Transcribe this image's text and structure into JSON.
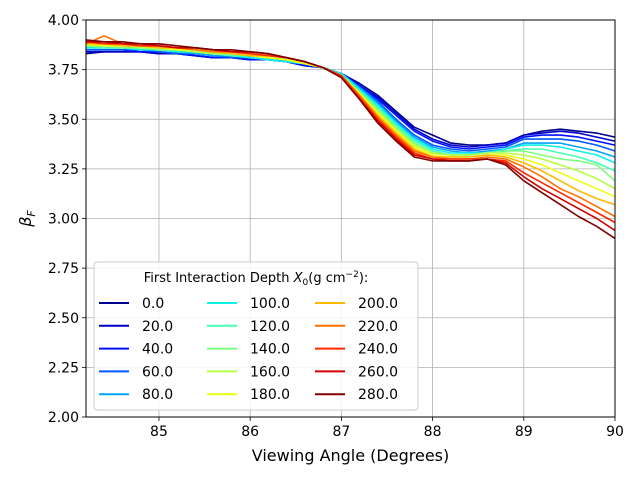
{
  "chart_data": {
    "type": "line",
    "title": "",
    "xlabel": "Viewing Angle (Degrees)",
    "ylabel": "β",
    "ylabel_sub": "F",
    "xlim": [
      84.2,
      90
    ],
    "ylim": [
      2.0,
      4.0
    ],
    "xticks": [
      85,
      86,
      87,
      88,
      89,
      90
    ],
    "yticks": [
      2.0,
      2.25,
      2.5,
      2.75,
      3.0,
      3.25,
      3.5,
      3.75,
      4.0
    ],
    "ytick_labels": [
      "2.00",
      "2.25",
      "2.50",
      "2.75",
      "3.00",
      "3.25",
      "3.50",
      "3.75",
      "4.00"
    ],
    "xtick_labels": [
      "85",
      "86",
      "87",
      "88",
      "89",
      "90"
    ],
    "grid": true,
    "legend": {
      "title_prefix": "First Interaction Depth ",
      "title_var": "X",
      "title_sub": "0",
      "title_open": "(g cm",
      "title_sup": "−2",
      "title_close": "):",
      "placement": "lower-left",
      "columns": 3
    },
    "x": [
      84.2,
      84.4,
      84.6,
      84.8,
      85.0,
      85.2,
      85.4,
      85.6,
      85.8,
      86.0,
      86.2,
      86.4,
      86.6,
      86.8,
      87.0,
      87.2,
      87.4,
      87.6,
      87.8,
      88.0,
      88.2,
      88.4,
      88.6,
      88.8,
      89.0,
      89.2,
      89.4,
      89.6,
      89.8,
      90.0
    ],
    "series": [
      {
        "name": "0.0",
        "color": "#00008f",
        "values": [
          3.83,
          3.84,
          3.84,
          3.84,
          3.83,
          3.83,
          3.82,
          3.81,
          3.81,
          3.8,
          3.8,
          3.79,
          3.77,
          3.76,
          3.73,
          3.68,
          3.62,
          3.54,
          3.46,
          3.42,
          3.38,
          3.37,
          3.37,
          3.38,
          3.42,
          3.44,
          3.45,
          3.44,
          3.43,
          3.41
        ]
      },
      {
        "name": "20.0",
        "color": "#0000c8",
        "values": [
          3.84,
          3.84,
          3.84,
          3.84,
          3.83,
          3.83,
          3.82,
          3.81,
          3.81,
          3.8,
          3.8,
          3.79,
          3.77,
          3.76,
          3.73,
          3.67,
          3.61,
          3.53,
          3.45,
          3.4,
          3.37,
          3.36,
          3.37,
          3.38,
          3.42,
          3.43,
          3.44,
          3.43,
          3.41,
          3.39
        ]
      },
      {
        "name": "40.0",
        "color": "#0010ff",
        "values": [
          3.85,
          3.85,
          3.85,
          3.84,
          3.84,
          3.83,
          3.82,
          3.81,
          3.81,
          3.8,
          3.8,
          3.79,
          3.77,
          3.76,
          3.73,
          3.67,
          3.6,
          3.52,
          3.44,
          3.39,
          3.36,
          3.35,
          3.36,
          3.37,
          3.41,
          3.42,
          3.42,
          3.41,
          3.39,
          3.37
        ]
      },
      {
        "name": "60.0",
        "color": "#0058ff",
        "values": [
          3.85,
          3.85,
          3.85,
          3.85,
          3.84,
          3.83,
          3.83,
          3.82,
          3.81,
          3.81,
          3.8,
          3.79,
          3.78,
          3.76,
          3.73,
          3.66,
          3.59,
          3.5,
          3.42,
          3.37,
          3.35,
          3.34,
          3.35,
          3.36,
          3.4,
          3.4,
          3.4,
          3.39,
          3.37,
          3.34
        ]
      },
      {
        "name": "80.0",
        "color": "#00a4ff",
        "values": [
          3.86,
          3.86,
          3.86,
          3.85,
          3.85,
          3.84,
          3.83,
          3.82,
          3.82,
          3.81,
          3.8,
          3.79,
          3.78,
          3.76,
          3.73,
          3.66,
          3.58,
          3.49,
          3.41,
          3.36,
          3.34,
          3.33,
          3.34,
          3.35,
          3.38,
          3.38,
          3.38,
          3.36,
          3.34,
          3.31
        ]
      },
      {
        "name": "100.0",
        "color": "#0ef0e8",
        "values": [
          3.86,
          3.86,
          3.86,
          3.85,
          3.85,
          3.84,
          3.84,
          3.83,
          3.82,
          3.81,
          3.8,
          3.79,
          3.78,
          3.76,
          3.73,
          3.65,
          3.57,
          3.48,
          3.4,
          3.35,
          3.33,
          3.33,
          3.33,
          3.35,
          3.37,
          3.37,
          3.36,
          3.34,
          3.32,
          3.28
        ]
      },
      {
        "name": "120.0",
        "color": "#44ffb4",
        "values": [
          3.87,
          3.86,
          3.86,
          3.86,
          3.85,
          3.85,
          3.84,
          3.83,
          3.82,
          3.82,
          3.81,
          3.8,
          3.78,
          3.76,
          3.72,
          3.64,
          3.56,
          3.47,
          3.39,
          3.34,
          3.32,
          3.32,
          3.33,
          3.34,
          3.35,
          3.35,
          3.33,
          3.31,
          3.28,
          3.24
        ]
      },
      {
        "name": "140.0",
        "color": "#7cff7c",
        "values": [
          3.87,
          3.87,
          3.86,
          3.86,
          3.85,
          3.85,
          3.84,
          3.83,
          3.83,
          3.82,
          3.81,
          3.8,
          3.78,
          3.76,
          3.72,
          3.64,
          3.55,
          3.46,
          3.38,
          3.33,
          3.32,
          3.32,
          3.33,
          3.34,
          3.34,
          3.32,
          3.3,
          3.29,
          3.27,
          3.19
        ]
      },
      {
        "name": "160.0",
        "color": "#b4ff44",
        "values": [
          3.87,
          3.87,
          3.87,
          3.86,
          3.86,
          3.85,
          3.84,
          3.83,
          3.83,
          3.82,
          3.81,
          3.8,
          3.78,
          3.76,
          3.72,
          3.63,
          3.54,
          3.45,
          3.37,
          3.33,
          3.32,
          3.32,
          3.33,
          3.33,
          3.32,
          3.3,
          3.27,
          3.24,
          3.2,
          3.15
        ]
      },
      {
        "name": "180.0",
        "color": "#ecff0e",
        "values": [
          3.88,
          3.87,
          3.87,
          3.87,
          3.86,
          3.85,
          3.85,
          3.84,
          3.83,
          3.82,
          3.81,
          3.8,
          3.78,
          3.76,
          3.72,
          3.63,
          3.53,
          3.44,
          3.36,
          3.32,
          3.31,
          3.31,
          3.32,
          3.32,
          3.3,
          3.27,
          3.23,
          3.19,
          3.15,
          3.11
        ]
      },
      {
        "name": "200.0",
        "color": "#ffb800",
        "values": [
          3.88,
          3.88,
          3.87,
          3.87,
          3.86,
          3.86,
          3.85,
          3.84,
          3.83,
          3.82,
          3.82,
          3.81,
          3.79,
          3.76,
          3.72,
          3.62,
          3.52,
          3.43,
          3.35,
          3.31,
          3.31,
          3.31,
          3.32,
          3.31,
          3.28,
          3.24,
          3.19,
          3.14,
          3.1,
          3.07
        ]
      },
      {
        "name": "220.0",
        "color": "#ff7000",
        "values": [
          3.88,
          3.92,
          3.88,
          3.87,
          3.87,
          3.86,
          3.85,
          3.84,
          3.84,
          3.83,
          3.82,
          3.81,
          3.79,
          3.76,
          3.72,
          3.62,
          3.51,
          3.42,
          3.34,
          3.31,
          3.3,
          3.3,
          3.31,
          3.3,
          3.26,
          3.21,
          3.15,
          3.11,
          3.06,
          3.01
        ]
      },
      {
        "name": "240.0",
        "color": "#ff2800",
        "values": [
          3.89,
          3.88,
          3.88,
          3.87,
          3.87,
          3.86,
          3.86,
          3.85,
          3.84,
          3.83,
          3.82,
          3.81,
          3.79,
          3.76,
          3.72,
          3.61,
          3.5,
          3.41,
          3.33,
          3.3,
          3.3,
          3.3,
          3.3,
          3.29,
          3.23,
          3.18,
          3.13,
          3.08,
          3.03,
          2.98
        ]
      },
      {
        "name": "260.0",
        "color": "#d00000",
        "values": [
          3.89,
          3.89,
          3.88,
          3.88,
          3.87,
          3.86,
          3.86,
          3.85,
          3.84,
          3.84,
          3.83,
          3.81,
          3.79,
          3.76,
          3.71,
          3.6,
          3.49,
          3.4,
          3.32,
          3.3,
          3.29,
          3.29,
          3.3,
          3.28,
          3.21,
          3.15,
          3.1,
          3.05,
          3.0,
          2.94
        ]
      },
      {
        "name": "280.0",
        "color": "#800000",
        "values": [
          3.9,
          3.89,
          3.89,
          3.88,
          3.88,
          3.87,
          3.86,
          3.85,
          3.85,
          3.84,
          3.83,
          3.81,
          3.79,
          3.76,
          3.71,
          3.6,
          3.48,
          3.39,
          3.31,
          3.29,
          3.29,
          3.29,
          3.3,
          3.27,
          3.19,
          3.13,
          3.07,
          3.01,
          2.96,
          2.9
        ]
      }
    ]
  }
}
